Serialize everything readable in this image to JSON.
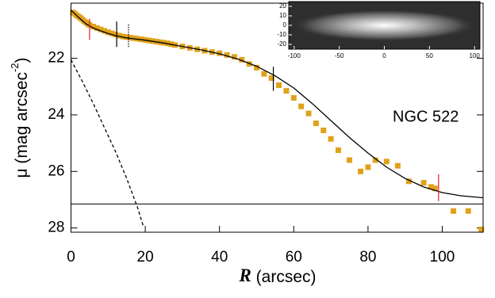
{
  "chart_data": {
    "type": "scatter",
    "annotation": "NGC 522",
    "x_label": [
      "R",
      " (arcsec)"
    ],
    "y_label": [
      "μ (mag arcsec",
      "-2",
      ")"
    ],
    "xlim": [
      0,
      111
    ],
    "ylim": [
      20.05,
      28.15
    ],
    "y_inverted": true,
    "xticks": [
      0,
      20,
      40,
      60,
      80,
      100
    ],
    "yticks": [
      22,
      24,
      26,
      28
    ],
    "points": {
      "color": "#e0a21a",
      "x": [
        0.5,
        1,
        1.5,
        2,
        2.5,
        3,
        3.5,
        4,
        4.5,
        5,
        6,
        7,
        8,
        9,
        10,
        11,
        12,
        13,
        14,
        15,
        16,
        17,
        18,
        19,
        20,
        21,
        22,
        23,
        24,
        25,
        26,
        27,
        28,
        30,
        32,
        34,
        36,
        38,
        40,
        42,
        44,
        46,
        48,
        50,
        52,
        54,
        56,
        58,
        60,
        62,
        64,
        66,
        68,
        70,
        72,
        75,
        78,
        80,
        82,
        85,
        88,
        91,
        95,
        97,
        98,
        103,
        107,
        110.5
      ],
      "values": [
        20.38,
        20.42,
        20.48,
        20.52,
        20.57,
        20.62,
        20.68,
        20.73,
        20.78,
        20.82,
        20.88,
        20.93,
        20.98,
        21.03,
        21.08,
        21.12,
        21.16,
        21.2,
        21.23,
        21.25,
        21.27,
        21.29,
        21.31,
        21.33,
        21.35,
        21.37,
        21.39,
        21.41,
        21.43,
        21.45,
        21.47,
        21.5,
        21.53,
        21.58,
        21.63,
        21.68,
        21.73,
        21.78,
        21.82,
        21.88,
        21.95,
        22.05,
        22.2,
        22.33,
        22.55,
        22.7,
        22.95,
        23.15,
        23.4,
        23.7,
        23.95,
        24.3,
        24.55,
        24.85,
        25.25,
        25.6,
        26.0,
        25.85,
        25.6,
        25.65,
        25.8,
        26.35,
        26.4,
        26.55,
        26.6,
        27.4,
        27.4,
        28.05
      ]
    },
    "model": {
      "color": "#000000",
      "x": [
        0,
        2,
        4,
        6,
        8,
        10,
        12,
        15,
        20,
        25,
        30,
        35,
        40,
        45,
        50,
        55,
        60,
        65,
        70,
        75,
        80,
        85,
        90,
        95,
        100,
        105,
        111
      ],
      "values": [
        20.3,
        20.55,
        20.78,
        20.93,
        21.03,
        21.12,
        21.2,
        21.28,
        21.36,
        21.46,
        21.58,
        21.7,
        21.84,
        22.03,
        22.28,
        22.62,
        23.05,
        23.6,
        24.2,
        24.8,
        25.35,
        25.85,
        26.25,
        26.55,
        26.75,
        26.86,
        26.93
      ]
    },
    "dashed": {
      "color": "#000000",
      "x": [
        0,
        3,
        6,
        9,
        12,
        15,
        18,
        19.5
      ],
      "values": [
        22.05,
        22.8,
        23.6,
        24.45,
        25.3,
        26.25,
        27.3,
        27.95
      ]
    },
    "sky_level": 27.15,
    "markers": [
      {
        "x": 5,
        "y": [
          20.6,
          21.35
        ],
        "color": "#e02020",
        "style": "solid"
      },
      {
        "x": 12.3,
        "y": [
          20.7,
          21.6
        ],
        "color": "#000000",
        "style": "solid"
      },
      {
        "x": 15.5,
        "y": [
          20.8,
          21.6
        ],
        "color": "#000000",
        "style": "dotted"
      },
      {
        "x": 54.5,
        "y": [
          22.3,
          23.15
        ],
        "color": "#000000",
        "style": "solid"
      },
      {
        "x": 99,
        "y": [
          26.1,
          27.05
        ],
        "color": "#e02020",
        "style": "solid"
      }
    ],
    "inset": {
      "xlim": [
        -106,
        106
      ],
      "ylim": [
        -25,
        25
      ],
      "xticks": [
        -100,
        -50,
        0,
        50,
        100
      ],
      "yticks": [
        20,
        10,
        0,
        -10,
        -20
      ]
    }
  }
}
